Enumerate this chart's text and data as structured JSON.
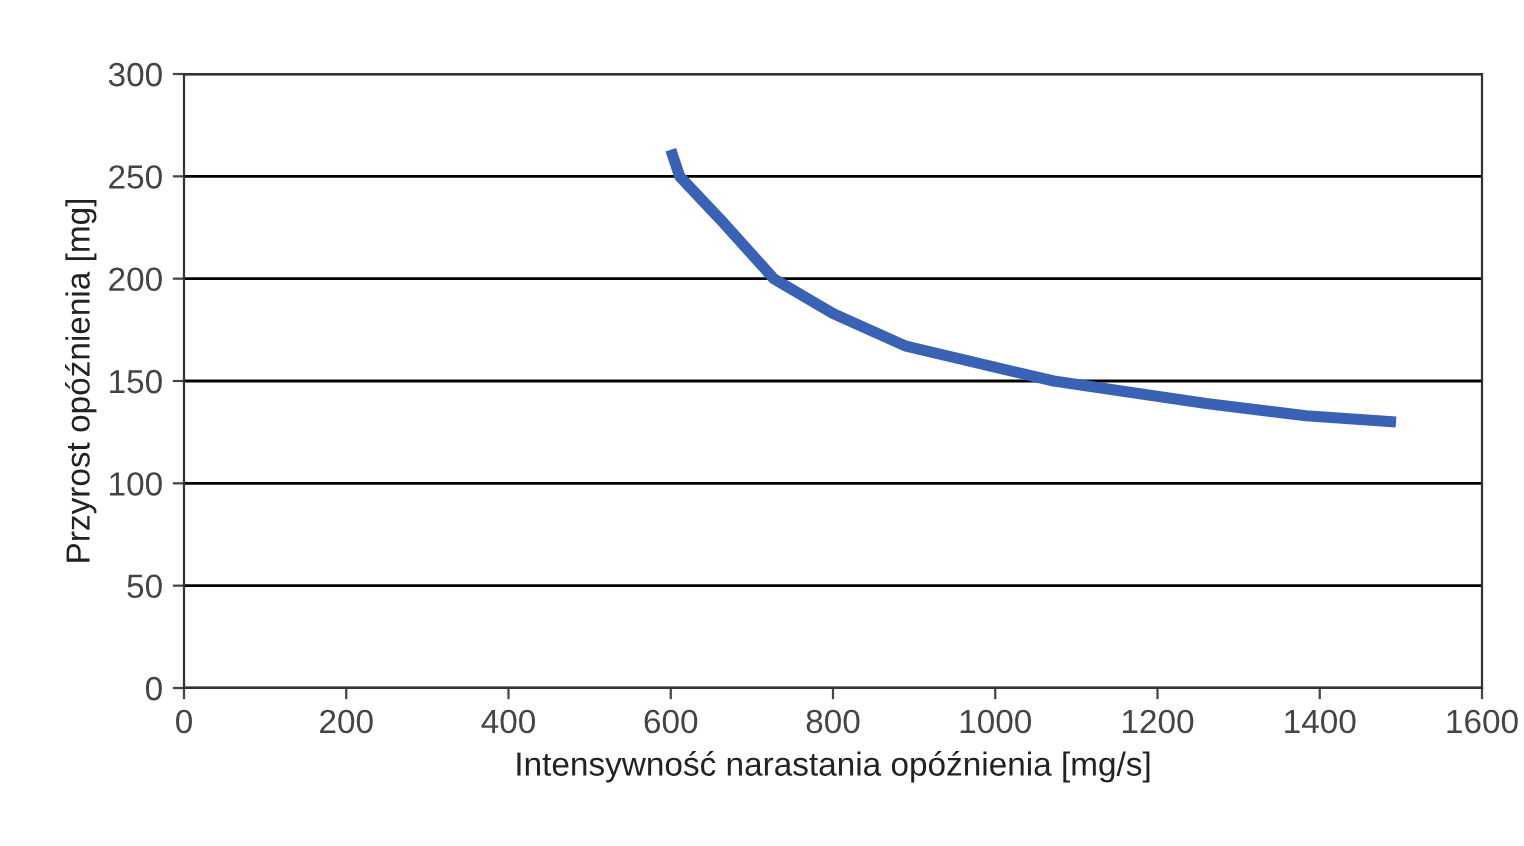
{
  "chart_data": {
    "type": "line",
    "xlabel": "Intensywność narastania opóźnienia [mg/s]",
    "ylabel": "Przyrost opóźnienia [mg]",
    "series": [
      {
        "color": "#3a62b4",
        "x": [
          600,
          611,
          661,
          727,
          800,
          890,
          1072,
          1260,
          1383,
          1494
        ],
        "values": [
          263,
          250,
          229,
          200,
          183,
          167,
          150,
          139,
          133,
          130
        ]
      }
    ],
    "xlim": [
      0,
      1600
    ],
    "xticks": [
      0,
      200,
      400,
      600,
      800,
      1000,
      1200,
      1400,
      1600
    ],
    "ylim": [
      0,
      300
    ],
    "yticks": [
      0,
      50,
      100,
      150,
      200,
      250,
      300
    ],
    "grid": "y",
    "marker": "none",
    "line_style": "solid"
  }
}
